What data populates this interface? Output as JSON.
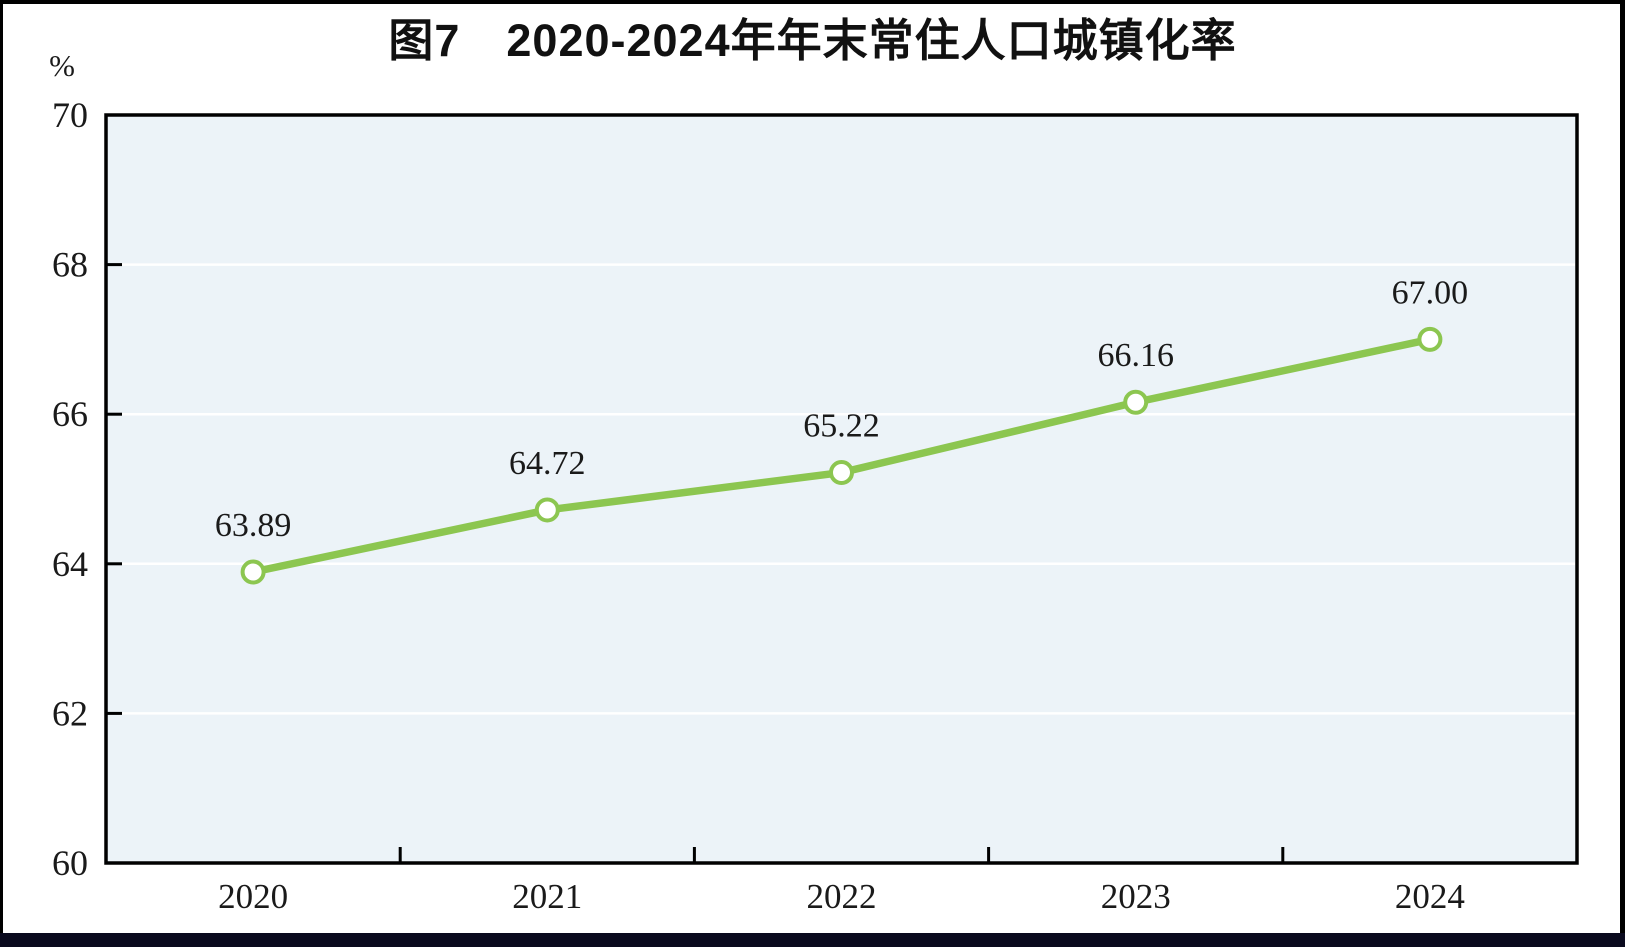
{
  "page": {
    "background": "#ffffff",
    "border_color": "#000000",
    "bottom_bar_color": "#0a0a1e"
  },
  "chart_data": {
    "type": "line",
    "title": "图7　2020-2024年年末常住人口城镇化率",
    "unit_label": "%",
    "categories": [
      "2020",
      "2021",
      "2022",
      "2023",
      "2024"
    ],
    "series": [
      {
        "values": [
          63.89,
          64.72,
          65.22,
          66.16,
          67.0
        ],
        "labels": [
          "63.89",
          "64.72",
          "65.22",
          "66.16",
          "67.00"
        ],
        "line_color": "#8cc650",
        "marker": "open-circle",
        "marker_fill": "#ffffff"
      }
    ],
    "ylim": [
      60,
      70
    ],
    "yticks": [
      60,
      62,
      64,
      66,
      68,
      70
    ],
    "xlabel": "",
    "ylabel": "%",
    "grid": {
      "horizontal": true,
      "color": "#ffffff"
    },
    "plot_background": "#ecf3f8",
    "axis_color": "#000000",
    "text_color": "#1a1a1a",
    "legend_position": "none"
  }
}
